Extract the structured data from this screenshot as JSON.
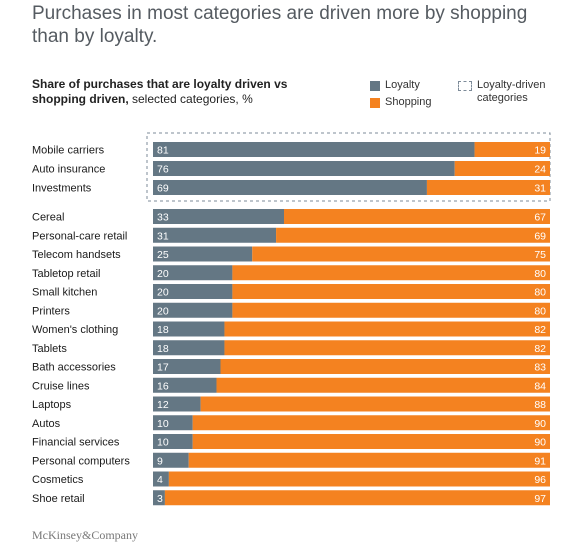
{
  "headline": "Purchases in most categories are driven more by shopping than by loyalty.",
  "subtitle_bold": "Share of purchases that are loyalty driven vs shopping driven,",
  "subtitle_rest": " selected categories, %",
  "legend": {
    "loyalty": "Loyalty",
    "shopping": "Shopping",
    "loyalty_driven": "Loyalty-driven categories"
  },
  "source": "McKinsey&Company",
  "colors": {
    "loyalty": "#647784",
    "shopping": "#f48220",
    "dashed_box": "#7d8b99"
  },
  "chart_data": {
    "type": "bar",
    "orientation": "horizontal",
    "stacked": true,
    "xlim": [
      0,
      100
    ],
    "categories": [
      "Mobile carriers",
      "Auto insurance",
      "Investments",
      "Cereal",
      "Personal-care retail",
      "Telecom handsets",
      "Tabletop retail",
      "Small kitchen",
      "Printers",
      "Women's clothing",
      "Tablets",
      "Bath accessories",
      "Cruise lines",
      "Laptops",
      "Autos",
      "Financial services",
      "Personal computers",
      "Cosmetics",
      "Shoe retail"
    ],
    "loyalty_driven_categories": [
      "Mobile carriers",
      "Auto insurance",
      "Investments"
    ],
    "series": [
      {
        "name": "Loyalty",
        "values": [
          81,
          76,
          69,
          33,
          31,
          25,
          20,
          20,
          20,
          18,
          18,
          17,
          16,
          12,
          10,
          10,
          9,
          4,
          3
        ]
      },
      {
        "name": "Shopping",
        "values": [
          19,
          24,
          31,
          67,
          69,
          75,
          80,
          80,
          80,
          82,
          82,
          83,
          84,
          88,
          90,
          90,
          91,
          96,
          97
        ]
      }
    ]
  }
}
